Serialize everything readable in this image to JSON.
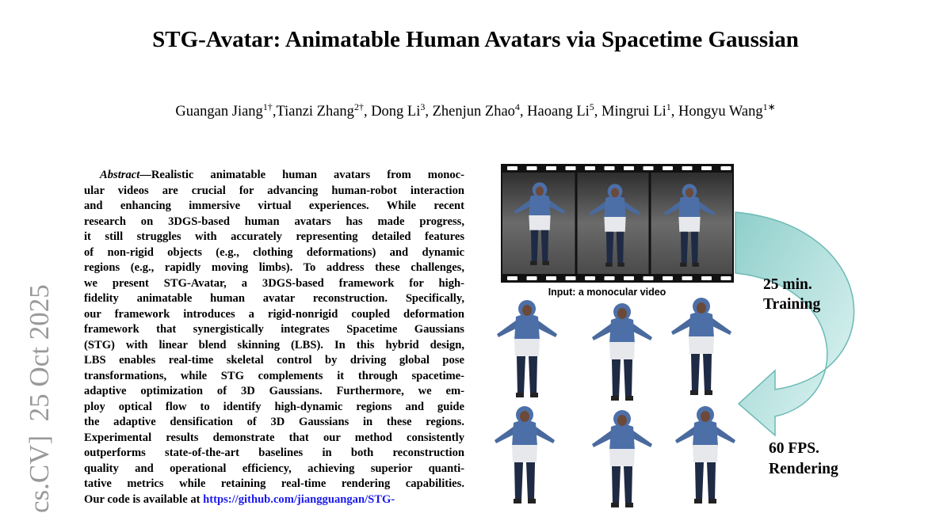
{
  "header": {
    "title": "STG-Avatar: Animatable Human Avatars via Spacetime Gaussian",
    "authors": [
      {
        "name": "Guangan Jiang",
        "sup": "1†"
      },
      {
        "name": ",Tianzi Zhang",
        "sup": "2†"
      },
      {
        "name": ", Dong Li",
        "sup": "3"
      },
      {
        "name": ", Zhenjun Zhao",
        "sup": "4"
      },
      {
        "name": ", Haoang Li",
        "sup": "5"
      },
      {
        "name": ", Mingrui Li",
        "sup": "1"
      },
      {
        "name": ", Hongyu Wang",
        "sup": "1∗"
      }
    ]
  },
  "side_stamp": "cs.CV]  25 Oct 2025",
  "abstract": {
    "label": "Abstract—",
    "link": "https://github.com/jiangguangan/STG-",
    "lines": [
      "Realistic animatable human avatars from monoc-",
      "ular videos are crucial for advancing human-robot interaction",
      "and enhancing immersive virtual experiences. While recent",
      "research on 3DGS-based human avatars has made progress,",
      "it still struggles with accurately representing detailed features",
      "of non-rigid objects (e.g., clothing deformations) and dynamic",
      "regions (e.g., rapidly moving limbs). To address these challenges,",
      "we present STG-Avatar, a 3DGS-based framework for high-",
      "fidelity animatable human avatar reconstruction. Specifically,",
      "our framework introduces a rigid-nonrigid coupled deformation",
      "framework that synergistically integrates Spacetime Gaussians",
      "(STG) with linear blend skinning (LBS). In this hybrid design,",
      "LBS enables real-time skeletal control by driving global pose",
      "transformations, while STG complements it through spacetime-",
      "adaptive optimization of 3D Gaussians. Furthermore, we em-",
      "ploy optical flow to identify high-dynamic regions and guide",
      "the adaptive densification of 3D Gaussians in these regions.",
      "Experimental results demonstrate that our method consistently",
      "outperforms state-of-the-art baselines in both reconstruction",
      "quality and operational efficiency, achieving superior quanti-",
      "tative metrics while retaining real-time rendering capabilities.",
      "Our code is available at "
    ]
  },
  "figure": {
    "caption": "Input: a monocular video",
    "labels": [
      [
        "25 min.",
        "Training"
      ],
      [
        "60 FPS.",
        "Rendering"
      ]
    ]
  }
}
